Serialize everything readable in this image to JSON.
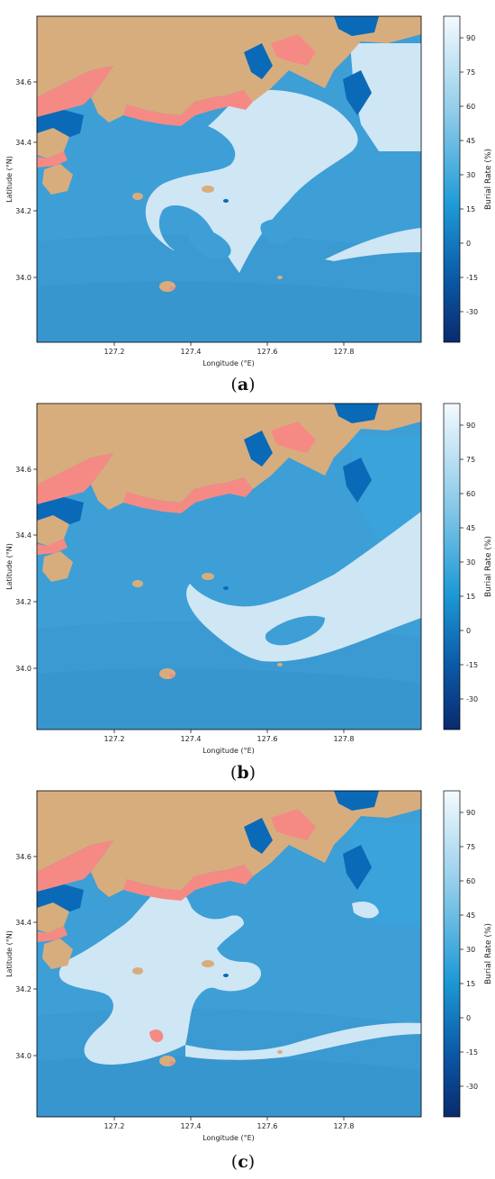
{
  "figure": {
    "panels": [
      {
        "caption_letter": "a",
        "xlabel": "Longitude (°E)",
        "ylabel": "Latitude (°N)",
        "xticks": [
          "127.2",
          "127.4",
          "127.6",
          "127.8"
        ],
        "yticks": [
          "34.6",
          "34.4",
          "34.2",
          "34.0"
        ],
        "colorbar_label": "Burial Rate (%)",
        "colorbar_ticks": [
          "90",
          "75",
          "60",
          "45",
          "30",
          "15",
          "0",
          "-15",
          "-30"
        ]
      },
      {
        "caption_letter": "b",
        "xlabel": "Longitude (°E)",
        "ylabel": "Latitude (°N)",
        "xticks": [
          "127.2",
          "127.4",
          "127.6",
          "127.8"
        ],
        "yticks": [
          "34.6",
          "34.4",
          "34.2",
          "34.0"
        ],
        "colorbar_label": "Burial Rate (%)",
        "colorbar_ticks": [
          "90",
          "75",
          "60",
          "45",
          "30",
          "15",
          "0",
          "-15",
          "-30"
        ]
      },
      {
        "caption_letter": "c",
        "xlabel": "Longitude (°E)",
        "ylabel": "Latitude (°N)",
        "xticks": [
          "127.2",
          "127.4",
          "127.6",
          "127.8"
        ],
        "yticks": [
          "34.6",
          "34.4",
          "34.2",
          "34.0"
        ],
        "colorbar_label": "Burial Rate (%)",
        "colorbar_ticks": [
          "90",
          "75",
          "60",
          "45",
          "30",
          "15",
          "0",
          "-15",
          "-30"
        ]
      }
    ],
    "colors": {
      "sea": "#3d9fd6",
      "high_burial": "#cfe6f5",
      "land": "#d8ad7e",
      "intertidal": "#f58a85",
      "low_burial": "#0a6ab8",
      "colorbar_top": "#f4faff",
      "colorbar_mid": "#1e9ad6",
      "colorbar_bottom": "#0a2a6e"
    }
  }
}
